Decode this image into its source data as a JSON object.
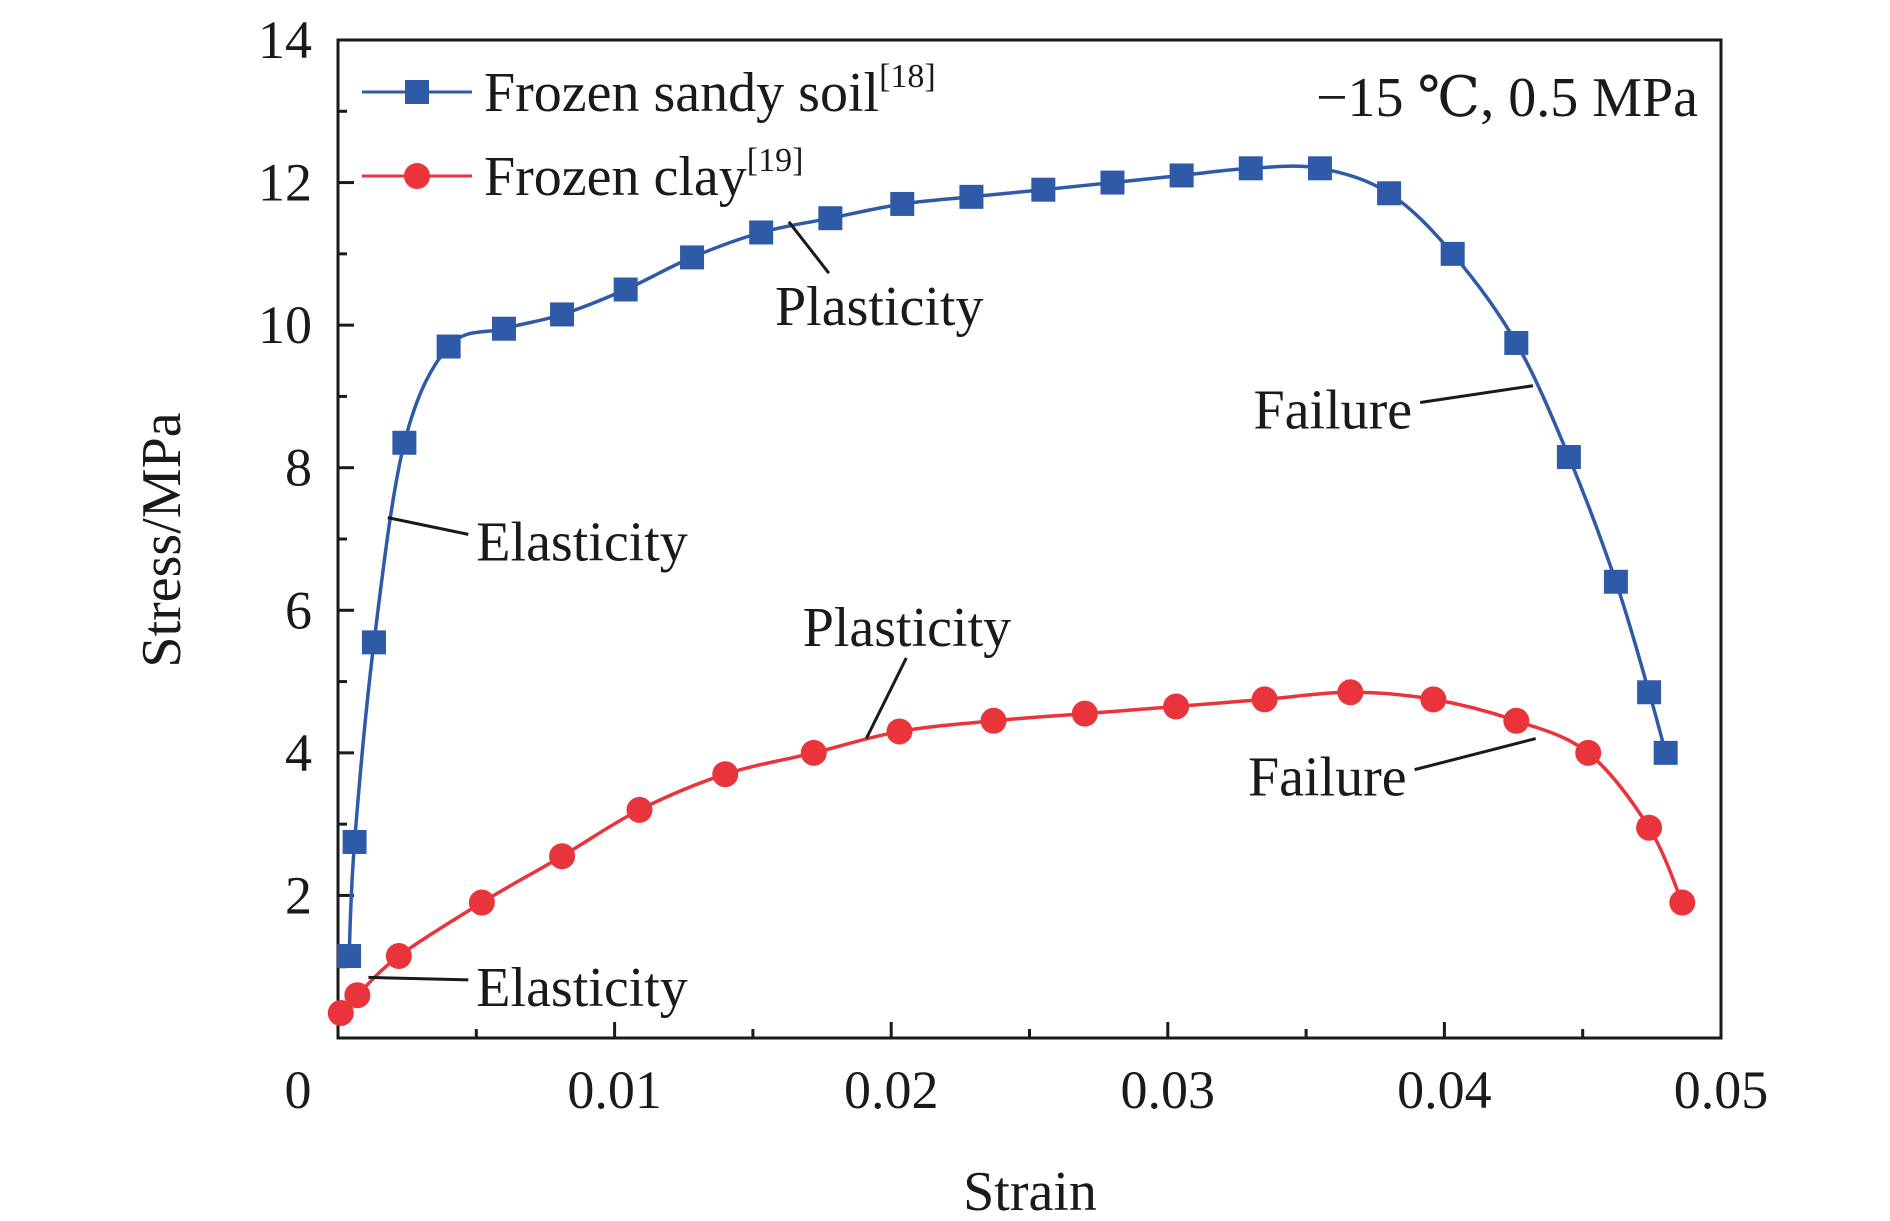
{
  "chart_data": {
    "type": "line",
    "xlabel": "Strain",
    "ylabel": "Stress/MPa",
    "xlim": [
      0,
      0.05
    ],
    "ylim": [
      0,
      14
    ],
    "x_ticks": [
      0,
      0.01,
      0.02,
      0.03,
      0.04,
      0.05
    ],
    "x_tick_labels": [
      "0",
      "0.01",
      "0.02",
      "0.03",
      "0.04",
      "0.05"
    ],
    "y_ticks": [
      2,
      4,
      6,
      8,
      10,
      12,
      14
    ],
    "y_tick_labels": [
      "2",
      "4",
      "6",
      "8",
      "10",
      "12",
      "14"
    ],
    "grid": false,
    "legend_position": "top-left",
    "condition_text": "−15 ℃, 0.5 MPa",
    "series": [
      {
        "name": "Frozen sandy soil",
        "ref": "[18]",
        "color": "#2f5aa8",
        "marker": "square",
        "x": [
          0.0004,
          0.0006,
          0.0013,
          0.0024,
          0.004,
          0.006,
          0.0081,
          0.0104,
          0.0128,
          0.0153,
          0.0178,
          0.0204,
          0.0229,
          0.0255,
          0.028,
          0.0305,
          0.033,
          0.0355,
          0.038,
          0.0403,
          0.0426,
          0.0445,
          0.0462,
          0.0474,
          0.048
        ],
        "y": [
          1.15,
          2.75,
          5.55,
          8.35,
          9.7,
          9.95,
          10.15,
          10.5,
          10.95,
          11.3,
          11.5,
          11.7,
          11.8,
          11.9,
          12.0,
          12.1,
          12.2,
          12.2,
          11.85,
          11.0,
          9.75,
          8.15,
          6.4,
          4.85,
          4.0
        ]
      },
      {
        "name": "Frozen clay",
        "ref": "[19]",
        "color": "#e8343a",
        "marker": "circle",
        "x": [
          0.0001,
          0.0007,
          0.0022,
          0.0052,
          0.0081,
          0.0109,
          0.014,
          0.0172,
          0.0203,
          0.0237,
          0.027,
          0.0303,
          0.0335,
          0.0366,
          0.0396,
          0.0426,
          0.0452,
          0.0474,
          0.0486
        ],
        "y": [
          0.35,
          0.6,
          1.15,
          1.9,
          2.55,
          3.2,
          3.7,
          4.0,
          4.3,
          4.45,
          4.55,
          4.65,
          4.75,
          4.85,
          4.75,
          4.45,
          4.0,
          2.95,
          1.9
        ]
      }
    ],
    "annotations": [
      {
        "text": "Plasticity",
        "arrow_to": [
          0.0163,
          11.45
        ],
        "label_at": [
          0.0158,
          10.0
        ]
      },
      {
        "text": "Failure",
        "arrow_to": [
          0.0432,
          9.15
        ],
        "label_at": [
          0.0331,
          8.55
        ]
      },
      {
        "text": "Elasticity",
        "arrow_to": [
          0.0018,
          7.3
        ],
        "label_at": [
          0.005,
          6.7
        ]
      },
      {
        "text": "Plasticity",
        "arrow_to": [
          0.0191,
          4.2
        ],
        "label_at": [
          0.0168,
          5.5
        ]
      },
      {
        "text": "Failure",
        "arrow_to": [
          0.0433,
          4.2
        ],
        "label_at": [
          0.0329,
          3.4
        ]
      },
      {
        "text": "Elasticity",
        "arrow_to": [
          0.0011,
          0.85
        ],
        "label_at": [
          0.005,
          0.45
        ]
      }
    ]
  }
}
